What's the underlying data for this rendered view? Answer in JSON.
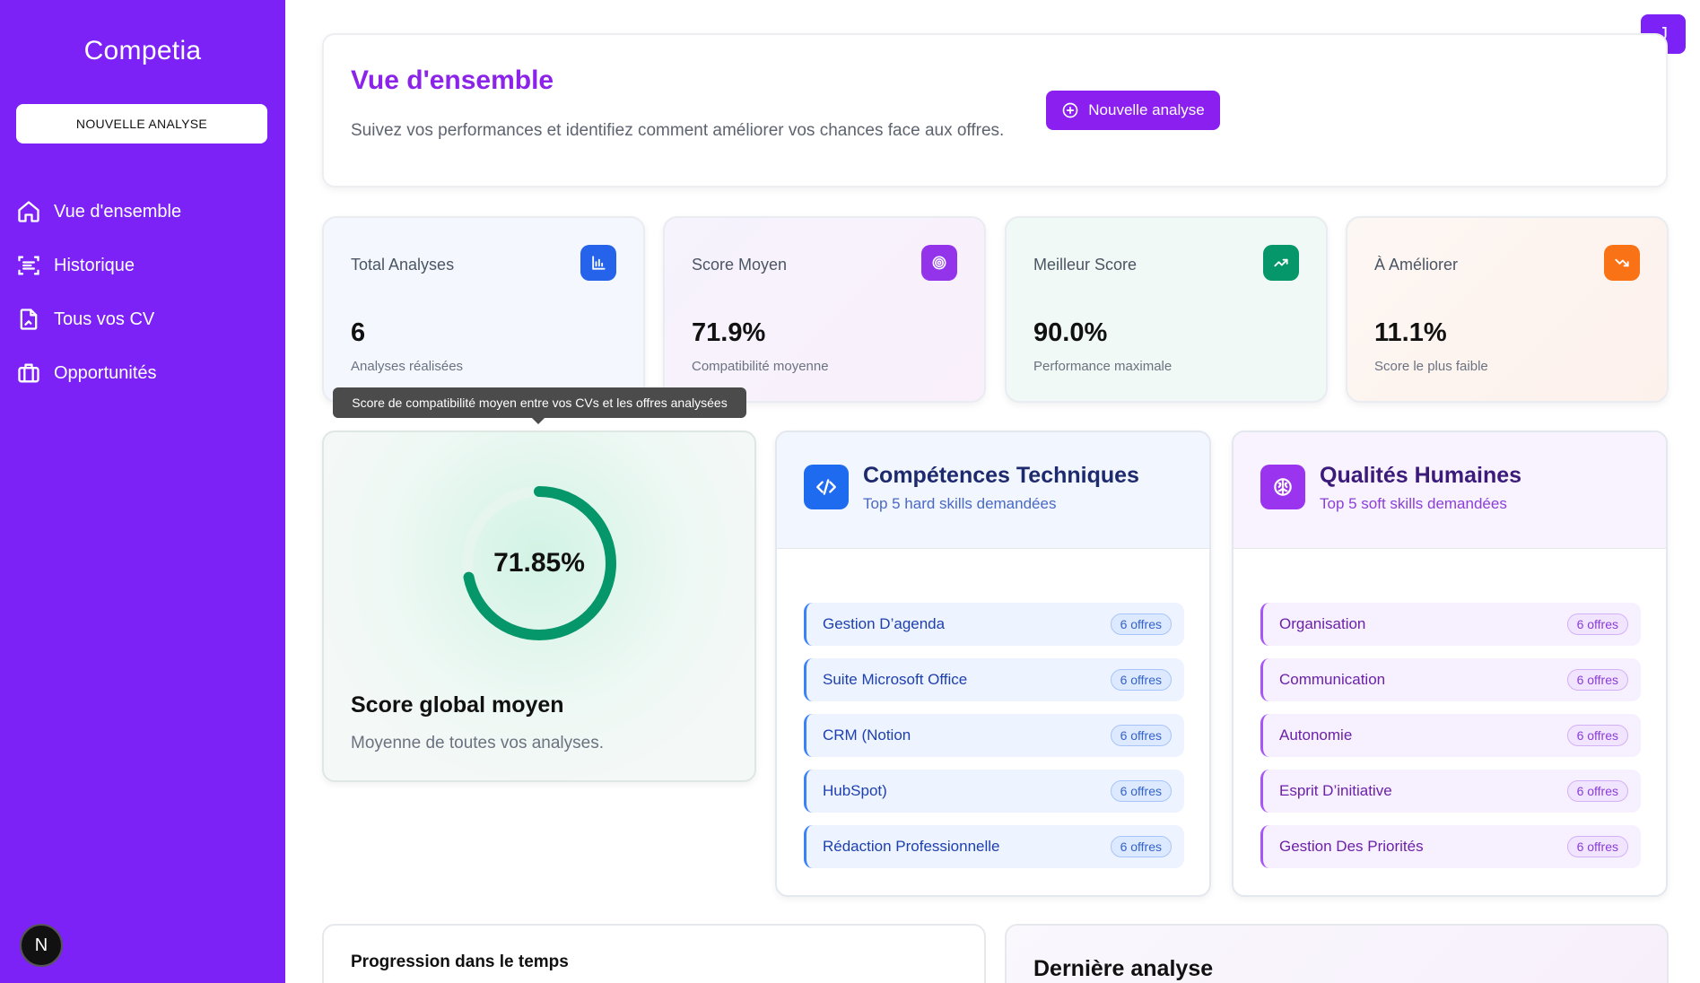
{
  "sidebar": {
    "brand": "Competia",
    "new_analysis_label": "NOUVELLE ANALYSE",
    "items": [
      {
        "label": "Vue d'ensemble",
        "icon": "home-icon"
      },
      {
        "label": "Historique",
        "icon": "history-icon"
      },
      {
        "label": "Tous vos CV",
        "icon": "file-icon"
      },
      {
        "label": "Opportunités",
        "icon": "briefcase-icon"
      }
    ],
    "footer_badge": "N"
  },
  "avatar": {
    "initial": "J"
  },
  "header": {
    "title": "Vue d'ensemble",
    "subtitle": "Suivez vos performances et identifiez comment améliorer vos chances face aux offres.",
    "button_label": "Nouvelle analyse"
  },
  "stats": [
    {
      "label": "Total Analyses",
      "value": "6",
      "caption": "Analyses réalisées",
      "icon": "bar-chart-icon",
      "color": "#2563eb"
    },
    {
      "label": "Score Moyen",
      "value": "71.9%",
      "caption": "Compatibilité moyenne",
      "icon": "target-icon",
      "color": "#9333ea"
    },
    {
      "label": "Meilleur Score",
      "value": "90.0%",
      "caption": "Performance maximale",
      "icon": "trending-up-icon",
      "color": "#059669"
    },
    {
      "label": "À Améliorer",
      "value": "11.1%",
      "caption": "Score le plus faible",
      "icon": "trending-down-icon",
      "color": "#f97316"
    }
  ],
  "tooltip": "Score de compatibilité moyen entre vos CVs et les offres analysées",
  "score": {
    "value_label": "71.85%",
    "value": 71.85,
    "title": "Score global moyen",
    "subtitle": "Moyenne de toutes vos analyses.",
    "color": "#059669"
  },
  "tech_skills": {
    "title": "Compétences Techniques",
    "subtitle": "Top 5 hard skills demandées",
    "icon": "code-icon",
    "items": [
      {
        "label": "Gestion D’agenda",
        "badge": "6 offres"
      },
      {
        "label": "Suite Microsoft Office",
        "badge": "6 offres"
      },
      {
        "label": "CRM (Notion",
        "badge": "6 offres"
      },
      {
        "label": "HubSpot)",
        "badge": "6 offres"
      },
      {
        "label": "Rédaction Professionnelle",
        "badge": "6 offres"
      }
    ]
  },
  "soft_skills": {
    "title": "Qualités Humaines",
    "subtitle": "Top 5 soft skills demandées",
    "icon": "brain-icon",
    "items": [
      {
        "label": "Organisation",
        "badge": "6 offres"
      },
      {
        "label": "Communication",
        "badge": "6 offres"
      },
      {
        "label": "Autonomie",
        "badge": "6 offres"
      },
      {
        "label": "Esprit D’initiative",
        "badge": "6 offres"
      },
      {
        "label": "Gestion Des Priorités",
        "badge": "6 offres"
      }
    ]
  },
  "progress": {
    "title": "Progression dans le temps"
  },
  "last_analysis": {
    "title": "Dernière analyse"
  }
}
